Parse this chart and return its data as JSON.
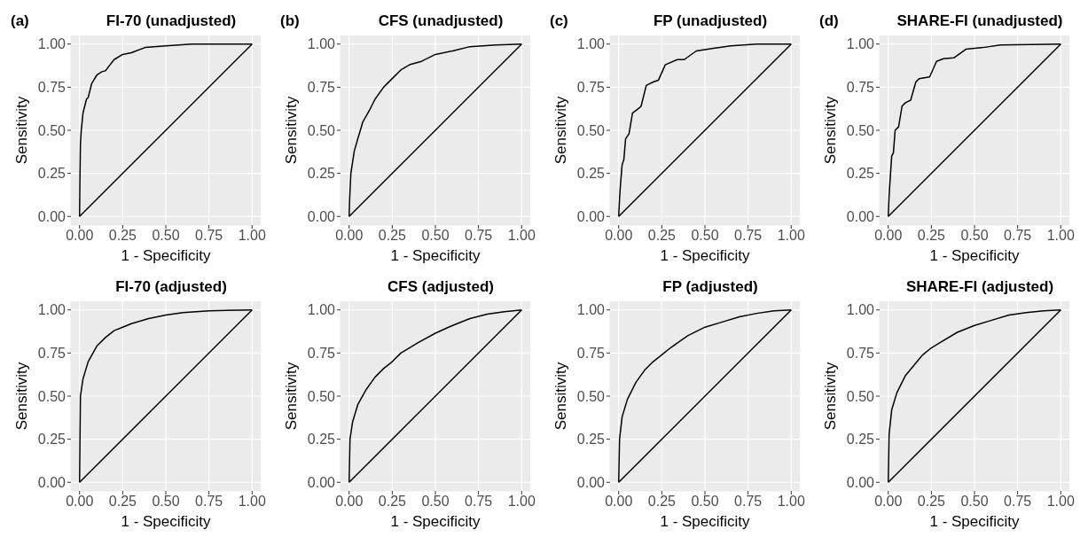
{
  "chart_data": [
    {
      "type": "line",
      "title": "FI-70 (unadjusted)",
      "annotations": [
        "(a)"
      ],
      "xlabel": "1 - Specificity",
      "ylabel": "Sensitivity",
      "xlim": [
        -0.05,
        1.05
      ],
      "ylim": [
        -0.05,
        1.05
      ],
      "xticks": [
        {
          "value": 0,
          "label": "0.00"
        },
        {
          "value": 0.25,
          "label": "0.25"
        },
        {
          "value": 0.5,
          "label": "0.50"
        },
        {
          "value": 0.75,
          "label": "0.75"
        },
        {
          "value": 1,
          "label": "1.00"
        }
      ],
      "yticks": [
        {
          "value": 0,
          "label": "0.00"
        },
        {
          "value": 0.25,
          "label": "0.25"
        },
        {
          "value": 0.5,
          "label": "0.50"
        },
        {
          "value": 0.75,
          "label": "0.75"
        },
        {
          "value": 1,
          "label": "1.00"
        }
      ],
      "grid": true,
      "series": [
        {
          "color": "#000000",
          "x": [
            0,
            0.002,
            0.005,
            0.01,
            0.02,
            0.04,
            0.05,
            0.07,
            0.1,
            0.13,
            0.15,
            0.2,
            0.25,
            0.3,
            0.38,
            0.5,
            0.65,
            1
          ],
          "values": [
            0,
            0.2,
            0.42,
            0.5,
            0.6,
            0.68,
            0.69,
            0.77,
            0.82,
            0.84,
            0.845,
            0.91,
            0.94,
            0.95,
            0.98,
            0.99,
            1,
            1
          ]
        },
        {
          "color": "#000000",
          "x": [
            0,
            1
          ],
          "values": [
            0,
            1
          ]
        }
      ]
    },
    {
      "type": "line",
      "title": "CFS (unadjusted)",
      "annotations": [
        "(b)"
      ],
      "xlabel": "1 - Specificity",
      "ylabel": "Sensitivity",
      "xlim": [
        -0.05,
        1.05
      ],
      "ylim": [
        -0.05,
        1.05
      ],
      "xticks": [
        {
          "value": 0,
          "label": "0.00"
        },
        {
          "value": 0.25,
          "label": "0.25"
        },
        {
          "value": 0.5,
          "label": "0.50"
        },
        {
          "value": 0.75,
          "label": "0.75"
        },
        {
          "value": 1,
          "label": "1.00"
        }
      ],
      "yticks": [
        {
          "value": 0,
          "label": "0.00"
        },
        {
          "value": 0.25,
          "label": "0.25"
        },
        {
          "value": 0.5,
          "label": "0.50"
        },
        {
          "value": 0.75,
          "label": "0.75"
        },
        {
          "value": 1,
          "label": "1.00"
        }
      ],
      "grid": true,
      "series": [
        {
          "color": "#000000",
          "x": [
            0,
            0.003,
            0.01,
            0.03,
            0.05,
            0.08,
            0.12,
            0.15,
            0.2,
            0.25,
            0.3,
            0.35,
            0.42,
            0.5,
            0.6,
            0.7,
            0.85,
            1
          ],
          "values": [
            0,
            0.1,
            0.25,
            0.38,
            0.45,
            0.55,
            0.62,
            0.68,
            0.75,
            0.8,
            0.85,
            0.88,
            0.9,
            0.94,
            0.96,
            0.985,
            0.995,
            1
          ]
        },
        {
          "color": "#000000",
          "x": [
            0,
            1
          ],
          "values": [
            0,
            1
          ]
        }
      ]
    },
    {
      "type": "line",
      "title": "FP (unadjusted)",
      "annotations": [
        "(c)"
      ],
      "xlabel": "1 - Specificity",
      "ylabel": "Sensitivity",
      "xlim": [
        -0.05,
        1.05
      ],
      "ylim": [
        -0.05,
        1.05
      ],
      "xticks": [
        {
          "value": 0,
          "label": "0.00"
        },
        {
          "value": 0.25,
          "label": "0.25"
        },
        {
          "value": 0.5,
          "label": "0.50"
        },
        {
          "value": 0.75,
          "label": "0.75"
        },
        {
          "value": 1,
          "label": "1.00"
        }
      ],
      "yticks": [
        {
          "value": 0,
          "label": "0.00"
        },
        {
          "value": 0.25,
          "label": "0.25"
        },
        {
          "value": 0.5,
          "label": "0.50"
        },
        {
          "value": 0.75,
          "label": "0.75"
        },
        {
          "value": 1,
          "label": "1.00"
        }
      ],
      "grid": true,
      "series": [
        {
          "color": "#000000",
          "x": [
            0,
            0.005,
            0.01,
            0.02,
            0.03,
            0.04,
            0.06,
            0.08,
            0.12,
            0.13,
            0.16,
            0.2,
            0.23,
            0.27,
            0.34,
            0.38,
            0.45,
            0.55,
            0.65,
            0.8,
            1
          ],
          "values": [
            0,
            0.1,
            0.18,
            0.3,
            0.33,
            0.45,
            0.48,
            0.6,
            0.63,
            0.64,
            0.76,
            0.78,
            0.79,
            0.88,
            0.91,
            0.91,
            0.96,
            0.975,
            0.99,
            1,
            1
          ]
        },
        {
          "color": "#000000",
          "x": [
            0,
            1
          ],
          "values": [
            0,
            1
          ]
        }
      ]
    },
    {
      "type": "line",
      "title": "SHARE-FI (unadjusted)",
      "annotations": [
        "(d)"
      ],
      "xlabel": "1 - Specificity",
      "ylabel": "Sensitivity",
      "xlim": [
        -0.05,
        1.05
      ],
      "ylim": [
        -0.05,
        1.05
      ],
      "xticks": [
        {
          "value": 0,
          "label": "0.00"
        },
        {
          "value": 0.25,
          "label": "0.25"
        },
        {
          "value": 0.5,
          "label": "0.50"
        },
        {
          "value": 0.75,
          "label": "0.75"
        },
        {
          "value": 1,
          "label": "1.00"
        }
      ],
      "yticks": [
        {
          "value": 0,
          "label": "0.00"
        },
        {
          "value": 0.25,
          "label": "0.25"
        },
        {
          "value": 0.5,
          "label": "0.50"
        },
        {
          "value": 0.75,
          "label": "0.75"
        },
        {
          "value": 1,
          "label": "1.00"
        }
      ],
      "grid": true,
      "series": [
        {
          "color": "#000000",
          "x": [
            0,
            0.005,
            0.01,
            0.02,
            0.03,
            0.04,
            0.06,
            0.08,
            0.1,
            0.13,
            0.16,
            0.18,
            0.24,
            0.28,
            0.32,
            0.38,
            0.45,
            0.55,
            0.65,
            1
          ],
          "values": [
            0,
            0.12,
            0.2,
            0.35,
            0.37,
            0.5,
            0.52,
            0.64,
            0.66,
            0.675,
            0.78,
            0.8,
            0.81,
            0.9,
            0.915,
            0.92,
            0.97,
            0.98,
            0.995,
            1
          ]
        },
        {
          "color": "#000000",
          "x": [
            0,
            1
          ],
          "values": [
            0,
            1
          ]
        }
      ]
    },
    {
      "type": "line",
      "title": "FI-70 (adjusted)",
      "xlabel": "1 - Specificity",
      "ylabel": "Sensitivity",
      "xlim": [
        -0.05,
        1.05
      ],
      "ylim": [
        -0.05,
        1.05
      ],
      "xticks": [
        {
          "value": 0,
          "label": "0.00"
        },
        {
          "value": 0.25,
          "label": "0.25"
        },
        {
          "value": 0.5,
          "label": "0.50"
        },
        {
          "value": 0.75,
          "label": "0.75"
        },
        {
          "value": 1,
          "label": "1.00"
        }
      ],
      "yticks": [
        {
          "value": 0,
          "label": "0.00"
        },
        {
          "value": 0.25,
          "label": "0.25"
        },
        {
          "value": 0.5,
          "label": "0.50"
        },
        {
          "value": 0.75,
          "label": "0.75"
        },
        {
          "value": 1,
          "label": "1.00"
        }
      ],
      "grid": true,
      "series": [
        {
          "color": "#000000",
          "x": [
            0,
            0.005,
            0.02,
            0.05,
            0.1,
            0.15,
            0.2,
            0.25,
            0.3,
            0.4,
            0.5,
            0.6,
            0.75,
            1
          ],
          "values": [
            0,
            0.5,
            0.6,
            0.7,
            0.79,
            0.84,
            0.88,
            0.9,
            0.92,
            0.95,
            0.97,
            0.985,
            0.995,
            1
          ]
        },
        {
          "color": "#000000",
          "x": [
            0,
            1
          ],
          "values": [
            0,
            1
          ]
        }
      ]
    },
    {
      "type": "line",
      "title": "CFS (adjusted)",
      "xlabel": "1 - Specificity",
      "ylabel": "Sensitivity",
      "xlim": [
        -0.05,
        1.05
      ],
      "ylim": [
        -0.05,
        1.05
      ],
      "xticks": [
        {
          "value": 0,
          "label": "0.00"
        },
        {
          "value": 0.25,
          "label": "0.25"
        },
        {
          "value": 0.5,
          "label": "0.50"
        },
        {
          "value": 0.75,
          "label": "0.75"
        },
        {
          "value": 1,
          "label": "1.00"
        }
      ],
      "yticks": [
        {
          "value": 0,
          "label": "0.00"
        },
        {
          "value": 0.25,
          "label": "0.25"
        },
        {
          "value": 0.5,
          "label": "0.50"
        },
        {
          "value": 0.75,
          "label": "0.75"
        },
        {
          "value": 1,
          "label": "1.00"
        }
      ],
      "grid": true,
      "series": [
        {
          "color": "#000000",
          "x": [
            0,
            0.005,
            0.02,
            0.05,
            0.1,
            0.15,
            0.2,
            0.25,
            0.3,
            0.4,
            0.5,
            0.6,
            0.7,
            0.8,
            0.9,
            1
          ],
          "values": [
            0,
            0.25,
            0.35,
            0.45,
            0.54,
            0.61,
            0.66,
            0.7,
            0.75,
            0.81,
            0.865,
            0.91,
            0.95,
            0.975,
            0.99,
            1
          ]
        },
        {
          "color": "#000000",
          "x": [
            0,
            1
          ],
          "values": [
            0,
            1
          ]
        }
      ]
    },
    {
      "type": "line",
      "title": "FP (adjusted)",
      "xlabel": "1 - Specificity",
      "ylabel": "Sensitivity",
      "xlim": [
        -0.05,
        1.05
      ],
      "ylim": [
        -0.05,
        1.05
      ],
      "xticks": [
        {
          "value": 0,
          "label": "0.00"
        },
        {
          "value": 0.25,
          "label": "0.25"
        },
        {
          "value": 0.5,
          "label": "0.50"
        },
        {
          "value": 0.75,
          "label": "0.75"
        },
        {
          "value": 1,
          "label": "1.00"
        }
      ],
      "yticks": [
        {
          "value": 0,
          "label": "0.00"
        },
        {
          "value": 0.25,
          "label": "0.25"
        },
        {
          "value": 0.5,
          "label": "0.50"
        },
        {
          "value": 0.75,
          "label": "0.75"
        },
        {
          "value": 1,
          "label": "1.00"
        }
      ],
      "grid": true,
      "series": [
        {
          "color": "#000000",
          "x": [
            0,
            0.005,
            0.02,
            0.05,
            0.1,
            0.15,
            0.2,
            0.25,
            0.3,
            0.4,
            0.5,
            0.6,
            0.7,
            0.8,
            0.9,
            1
          ],
          "values": [
            0,
            0.25,
            0.38,
            0.48,
            0.58,
            0.65,
            0.7,
            0.74,
            0.78,
            0.85,
            0.9,
            0.93,
            0.96,
            0.98,
            0.995,
            1
          ]
        },
        {
          "color": "#000000",
          "x": [
            0,
            1
          ],
          "values": [
            0,
            1
          ]
        }
      ]
    },
    {
      "type": "line",
      "title": "SHARE-FI (adjusted)",
      "xlabel": "1 - Specificity",
      "ylabel": "Sensitivity",
      "xlim": [
        -0.05,
        1.05
      ],
      "ylim": [
        -0.05,
        1.05
      ],
      "xticks": [
        {
          "value": 0,
          "label": "0.00"
        },
        {
          "value": 0.25,
          "label": "0.25"
        },
        {
          "value": 0.5,
          "label": "0.50"
        },
        {
          "value": 0.75,
          "label": "0.75"
        },
        {
          "value": 1,
          "label": "1.00"
        }
      ],
      "yticks": [
        {
          "value": 0,
          "label": "0.00"
        },
        {
          "value": 0.25,
          "label": "0.25"
        },
        {
          "value": 0.5,
          "label": "0.50"
        },
        {
          "value": 0.75,
          "label": "0.75"
        },
        {
          "value": 1,
          "label": "1.00"
        }
      ],
      "grid": true,
      "series": [
        {
          "color": "#000000",
          "x": [
            0,
            0.005,
            0.02,
            0.05,
            0.1,
            0.15,
            0.2,
            0.25,
            0.3,
            0.4,
            0.5,
            0.6,
            0.7,
            0.8,
            0.9,
            1
          ],
          "values": [
            0,
            0.28,
            0.42,
            0.52,
            0.62,
            0.68,
            0.74,
            0.78,
            0.81,
            0.87,
            0.91,
            0.94,
            0.97,
            0.985,
            0.995,
            1
          ]
        },
        {
          "color": "#000000",
          "x": [
            0,
            1
          ],
          "values": [
            0,
            1
          ]
        }
      ]
    }
  ]
}
